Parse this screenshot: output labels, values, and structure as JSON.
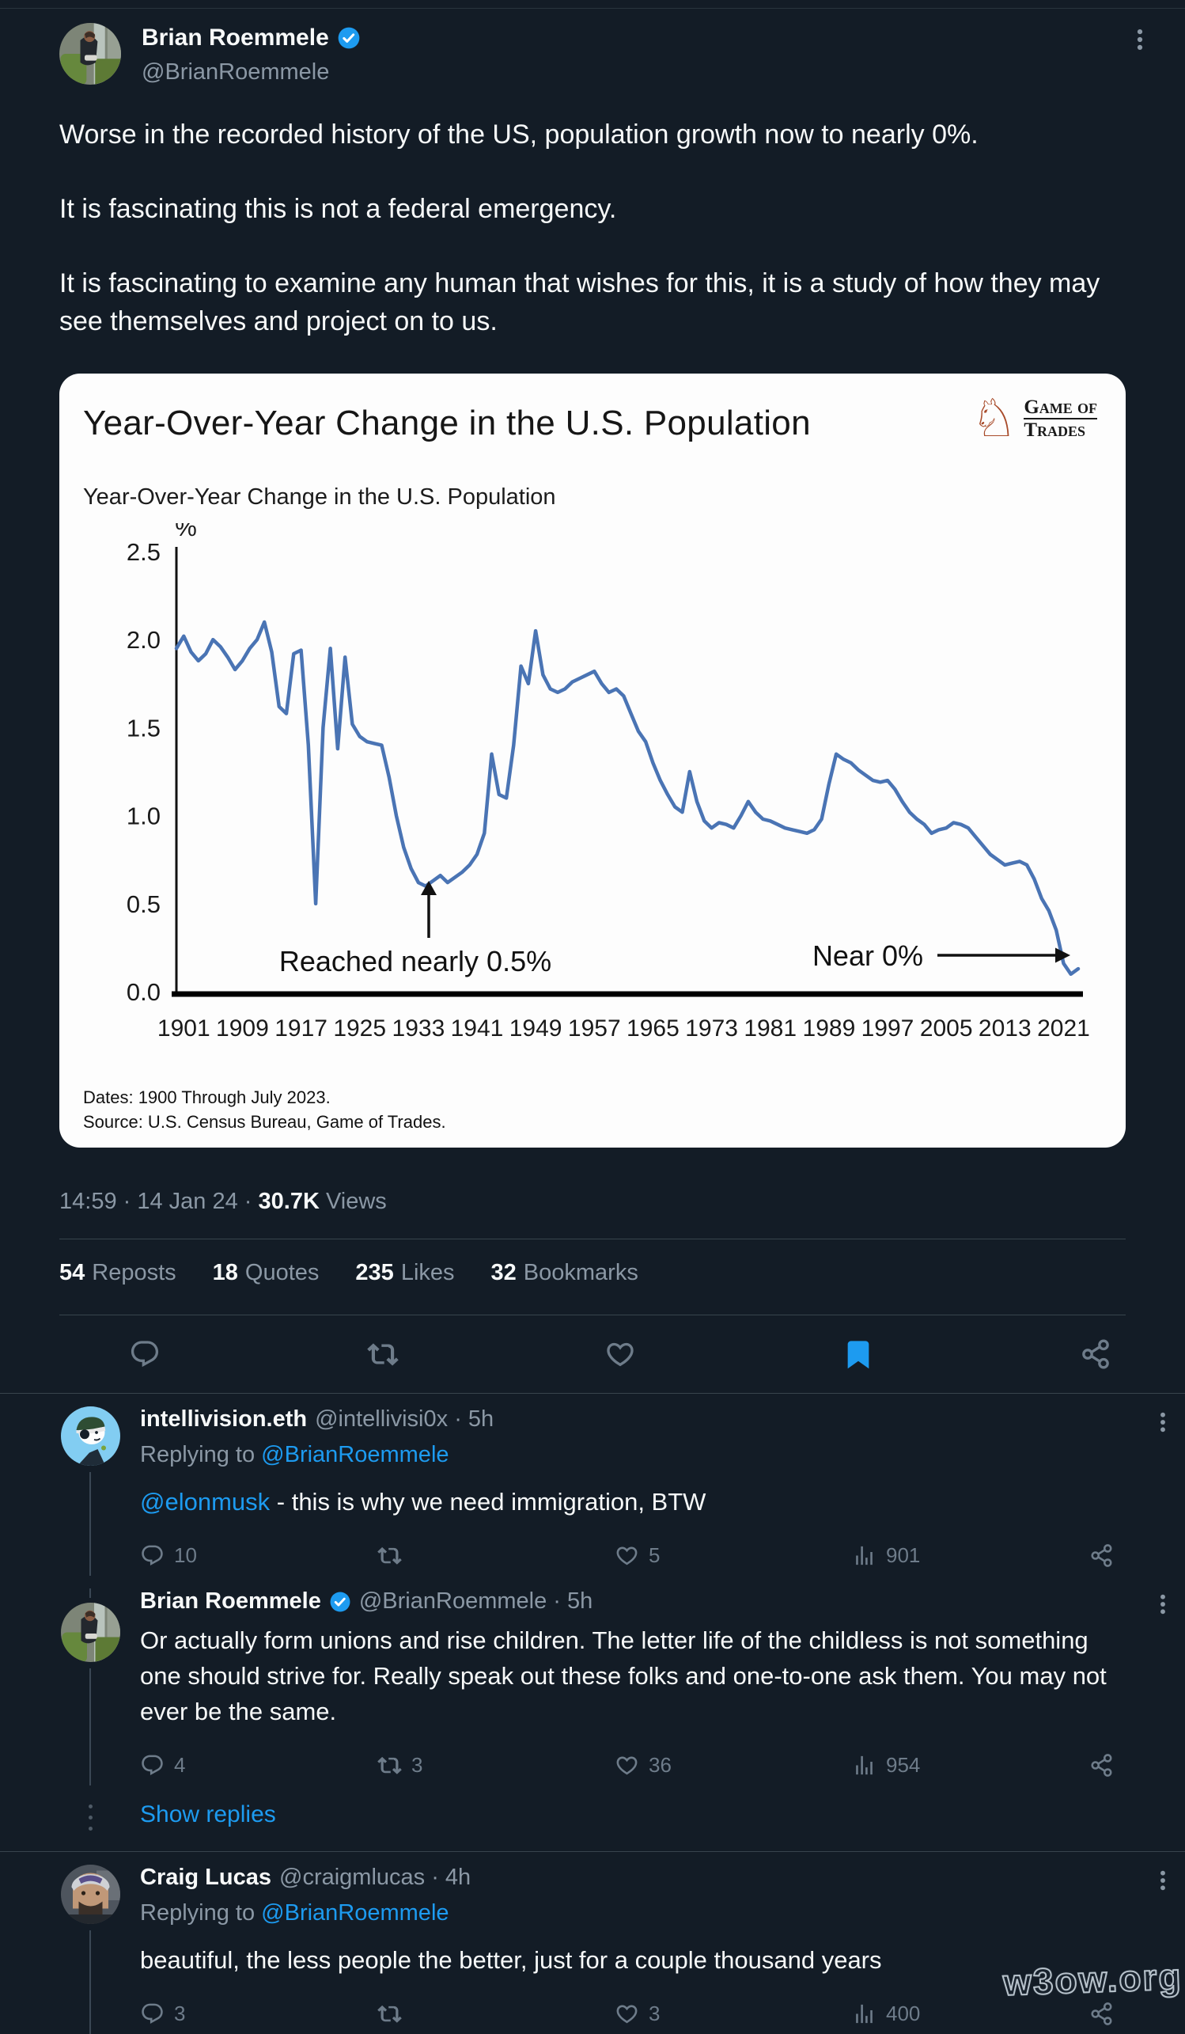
{
  "page": {
    "background": "#131c26",
    "watermark_text": "w3ow.org"
  },
  "colors": {
    "accent_blue": "#1d9bf0",
    "text_primary": "#f7f9f9",
    "text_secondary": "#8b98a5",
    "divider": "#38444d",
    "chart_line": "#4a74b4",
    "logo_rust": "#a84b2a"
  },
  "main_tweet": {
    "author_name": "Brian Roemmele",
    "author_handle": "@BrianRoemmele",
    "verified": true,
    "paragraphs": [
      "Worse in the recorded history of the US, population growth now to nearly 0%.",
      "It is fascinating this is not a federal emergency.",
      "It is fascinating to examine any human that wishes for this, it is a study of how they may see themselves and project on to us."
    ],
    "meta": "14:59 · 14 Jan 24 ·",
    "views_value": "30.7K",
    "views_label": "Views",
    "stats": {
      "reposts": [
        "54",
        "Reposts"
      ],
      "quotes": [
        "18",
        "Quotes"
      ],
      "likes": [
        "235",
        "Likes"
      ],
      "bookmarks": [
        "32",
        "Bookmarks"
      ]
    },
    "bookmarked": true
  },
  "chart_card": {
    "title": "Year-Over-Year Change in the U.S. Population",
    "subtitle": "Year-Over-Year Change in the U.S. Population",
    "logo_symbol": "♘",
    "logo_line1": "Game of",
    "logo_line2": "Trades",
    "footer_line1": "Dates: 1900 Through July 2023.",
    "footer_line2": "Source: U.S. Census Bureau, Game of Trades."
  },
  "chart_data": {
    "type": "line",
    "title": "Year-Over-Year Change in the U.S. Population",
    "xlabel": "",
    "ylabel": "%",
    "ylim": [
      0,
      2.5
    ],
    "y_ticks": [
      "2.5",
      "2.0",
      "1.5",
      "1.0",
      "0.5",
      "0.0"
    ],
    "x_range": [
      1900,
      2023
    ],
    "x_ticks": [
      1901,
      1909,
      1917,
      1925,
      1933,
      1941,
      1949,
      1957,
      1965,
      1973,
      1981,
      1989,
      1997,
      2005,
      2013,
      2021
    ],
    "grid": false,
    "legend": "none",
    "line_color": "#4a74b4",
    "annotations": [
      {
        "text": "Reached nearly 0.5%",
        "points_to_year": 1934,
        "arrow": "up"
      },
      {
        "text": "Near 0%",
        "points_to_year": 2023,
        "arrow": "right"
      }
    ],
    "start_year": 1900,
    "values": [
      1.95,
      2.02,
      1.93,
      1.88,
      1.92,
      2.0,
      1.96,
      1.9,
      1.83,
      1.88,
      1.95,
      2.0,
      2.1,
      1.93,
      1.62,
      1.58,
      1.92,
      1.94,
      1.4,
      0.5,
      1.5,
      1.95,
      1.38,
      1.9,
      1.52,
      1.45,
      1.42,
      1.41,
      1.4,
      1.22,
      1.0,
      0.82,
      0.7,
      0.62,
      0.6,
      0.63,
      0.66,
      0.62,
      0.65,
      0.68,
      0.72,
      0.78,
      0.9,
      1.35,
      1.12,
      1.1,
      1.4,
      1.85,
      1.75,
      2.05,
      1.8,
      1.72,
      1.7,
      1.72,
      1.76,
      1.78,
      1.8,
      1.82,
      1.75,
      1.7,
      1.72,
      1.68,
      1.58,
      1.48,
      1.42,
      1.3,
      1.2,
      1.12,
      1.05,
      1.02,
      1.25,
      1.08,
      0.97,
      0.93,
      0.96,
      0.95,
      0.93,
      1.0,
      1.08,
      1.02,
      0.98,
      0.97,
      0.95,
      0.93,
      0.92,
      0.91,
      0.9,
      0.92,
      0.98,
      1.18,
      1.35,
      1.32,
      1.3,
      1.26,
      1.23,
      1.2,
      1.19,
      1.2,
      1.15,
      1.08,
      1.02,
      0.98,
      0.95,
      0.9,
      0.92,
      0.93,
      0.96,
      0.95,
      0.93,
      0.88,
      0.83,
      0.78,
      0.75,
      0.72,
      0.73,
      0.74,
      0.72,
      0.64,
      0.53,
      0.46,
      0.35,
      0.16,
      0.1,
      0.13
    ]
  },
  "replies": [
    {
      "name": "intellivision.eth",
      "meta": "@intellivisi0x · 5h",
      "verified": false,
      "replying_label": "Replying to ",
      "replying_to": "@BrianRoemmele",
      "mention": "@elonmusk",
      "text": " - this is why we need immigration, BTW",
      "reply_count": "10",
      "repost_count": "",
      "like_count": "5",
      "view_count": "901"
    },
    {
      "name": "Brian Roemmele",
      "meta": "@BrianRoemmele · 5h",
      "verified": true,
      "text": "Or actually form unions and rise children. The letter life of the childless is not something one should strive for. Really speak out these folks and one-to-one ask them. You may not ever be the same.",
      "reply_count": "4",
      "repost_count": "3",
      "like_count": "36",
      "view_count": "954",
      "show_replies_label": "Show replies"
    },
    {
      "name": "Craig Lucas",
      "meta": "@craigmlucas · 4h",
      "verified": false,
      "replying_label": "Replying to ",
      "replying_to": "@BrianRoemmele",
      "text": "beautiful, the less people the better, just for a couple thousand years",
      "reply_count": "3",
      "repost_count": "",
      "like_count": "3",
      "view_count": "400"
    }
  ]
}
